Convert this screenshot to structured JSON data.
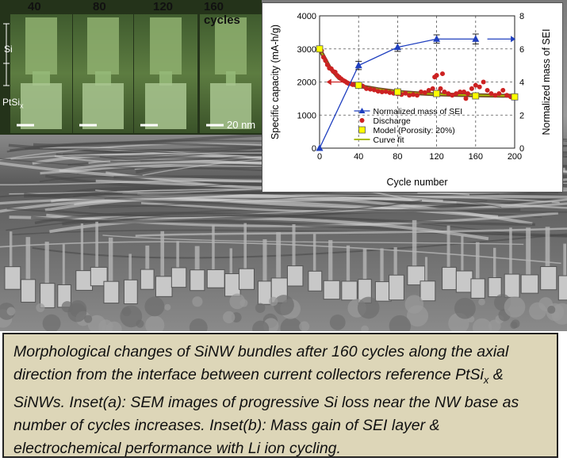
{
  "inset_a": {
    "panels": [
      "40",
      "80",
      "120",
      "160 cycles"
    ],
    "si_label": "Si",
    "ptsi_label": "PtSi",
    "ptsi_sub": "x",
    "scale_label": "20 nm"
  },
  "chart_data": {
    "type": "line",
    "xlabel": "Cycle number",
    "ylabel_left": "Specific capacity (mA-h/g)",
    "ylabel_right": "Normalized mass of SEI",
    "xlim": [
      0,
      200
    ],
    "ylim_left": [
      0,
      4000
    ],
    "ylim_right": [
      0,
      8
    ],
    "x_ticks": [
      "0",
      "40",
      "80",
      "120",
      "160",
      "200"
    ],
    "y_ticks_left": [
      "0",
      "1000",
      "2000",
      "3000",
      "4000"
    ],
    "y_ticks_right": [
      "0",
      "2",
      "4",
      "6",
      "8"
    ],
    "grid": "dashed",
    "legend_position": "bottom-left",
    "series": [
      {
        "name": "Normalized mass of SEI",
        "axis": "right",
        "color": "#1f3fbf",
        "x": [
          0,
          40,
          80,
          120,
          160
        ],
        "y": [
          0,
          5.0,
          6.1,
          6.6,
          6.6
        ],
        "err": [
          0,
          0.25,
          0.25,
          0.25,
          0.3
        ]
      },
      {
        "name": "Discharge",
        "axis": "left",
        "color": "#cc2222",
        "x": [
          2,
          4,
          6,
          8,
          10,
          12,
          14,
          16,
          18,
          20,
          22,
          24,
          26,
          28,
          30,
          32,
          34,
          36,
          38,
          40,
          44,
          48,
          52,
          56,
          60,
          64,
          68,
          72,
          76,
          80,
          84,
          88,
          92,
          96,
          100,
          104,
          108,
          112,
          116,
          118,
          120,
          122,
          124,
          126,
          128,
          132,
          136,
          140,
          144,
          148,
          150,
          152,
          156,
          160,
          164,
          168,
          172,
          176,
          180,
          184,
          188,
          192,
          196,
          200
        ],
        "y": [
          2950,
          2750,
          2650,
          2520,
          2420,
          2400,
          2320,
          2300,
          2200,
          2150,
          2100,
          2050,
          2020,
          1980,
          1950,
          1950,
          1920,
          1920,
          1900,
          1900,
          1880,
          1800,
          1780,
          1760,
          1720,
          1700,
          1710,
          1680,
          1660,
          1640,
          1620,
          1660,
          1600,
          1620,
          1600,
          1700,
          1680,
          1750,
          1800,
          2150,
          2200,
          1700,
          1800,
          2250,
          1700,
          1650,
          1600,
          1650,
          1700,
          1700,
          1500,
          1650,
          1800,
          1900,
          1850,
          2000,
          1750,
          1650,
          1600,
          1650,
          1750,
          1600,
          1550,
          1550
        ]
      },
      {
        "name": "Model (Porosity: 20%)",
        "axis": "left",
        "color": "#ffff00",
        "x": [
          0,
          40,
          80,
          120,
          160,
          200
        ],
        "y": [
          3000,
          1900,
          1700,
          1650,
          1580,
          1550
        ]
      },
      {
        "name": "Curve fit",
        "axis": "left",
        "color": "#aabb00",
        "x": [
          0,
          10,
          20,
          30,
          40,
          60,
          80,
          100,
          120,
          140,
          160,
          180,
          200
        ],
        "y": [
          3000,
          2450,
          2120,
          1960,
          1880,
          1780,
          1700,
          1660,
          1630,
          1610,
          1600,
          1590,
          1580
        ]
      }
    ]
  },
  "caption": {
    "part1": "Morphological changes of SiNW bundles after 160 cycles along the axial direction from the interface between current collectors reference PtSi",
    "sub": "x",
    "part2": " & SiNWs. Inset(a): SEM images of progressive Si loss near the NW base as number of cycles increases. Inset(b): Mass gain of SEI layer & electrochemical performance with Li ion cycling."
  }
}
